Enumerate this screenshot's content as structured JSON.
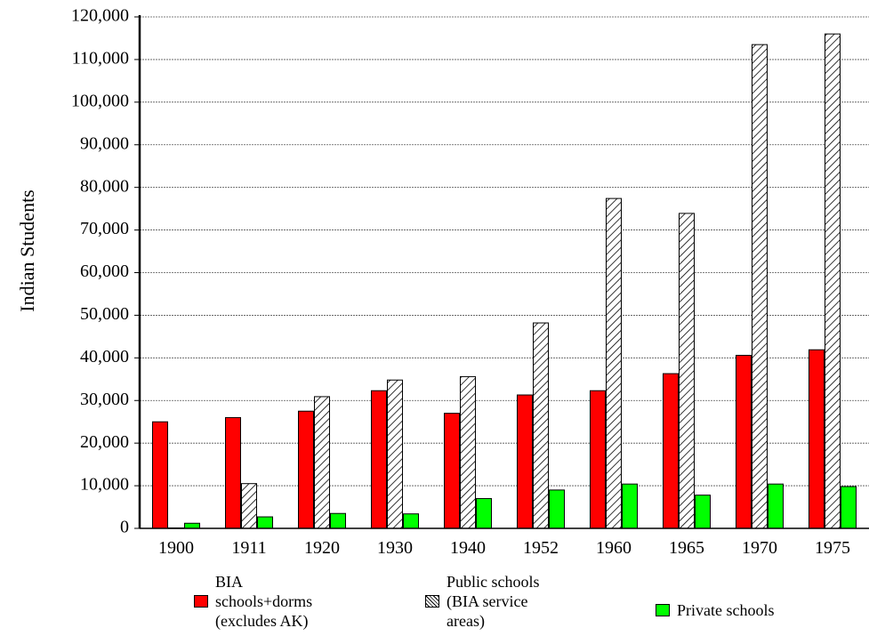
{
  "chart_data": {
    "type": "bar",
    "title": "",
    "xlabel": "",
    "ylabel": "Indian Students",
    "ylim": [
      0,
      120000
    ],
    "y_ticks": [
      "0",
      "10,000",
      "20,000",
      "30,000",
      "40,000",
      "50,000",
      "60,000",
      "70,000",
      "80,000",
      "90,000",
      "100,000",
      "110,000",
      "120,000"
    ],
    "grid": true,
    "legend_position": "bottom",
    "categories": [
      "1900",
      "1911",
      "1920",
      "1930",
      "1940",
      "1952",
      "1960",
      "1965",
      "1970",
      "1975"
    ],
    "series": [
      {
        "name": "BIA\nschools+dorms\n(excludes AK)",
        "color": "#ff0000",
        "pattern": "solid",
        "values": [
          25000,
          26000,
          27500,
          32300,
          27000,
          31300,
          32300,
          36300,
          40600,
          41900
        ]
      },
      {
        "name": "Public schools\n(BIA service\nareas)",
        "color": "#ffffff",
        "pattern": "hatched",
        "values": [
          100,
          10500,
          30900,
          34800,
          35600,
          48200,
          77400,
          73900,
          113500,
          116000
        ]
      },
      {
        "name": "Private schools",
        "color": "#00ff00",
        "pattern": "solid",
        "values": [
          1200,
          2700,
          3500,
          3400,
          7000,
          9000,
          10400,
          7800,
          10400,
          9800
        ]
      }
    ]
  }
}
